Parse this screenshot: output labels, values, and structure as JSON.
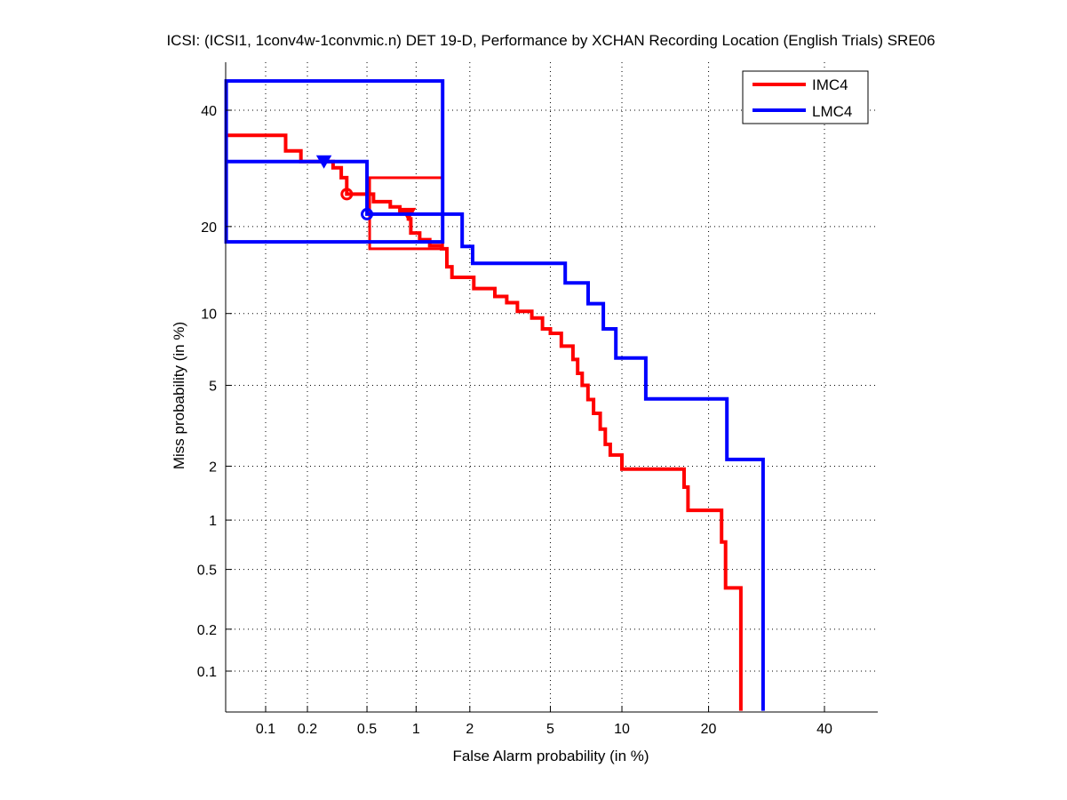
{
  "chart_data": {
    "type": "line",
    "subtype": "DET curve (normal deviate / probit scale)",
    "title": "ICSI: (ICSI1, 1conv4w-1convmic.n) DET 19-D,  Performance by XCHAN Recording Location (English Trials) SRE06",
    "xlabel": "False Alarm probability (in %)",
    "ylabel": "Miss probability (in %)",
    "xscale": "probit",
    "yscale": "probit",
    "xlim": [
      0.05,
      50
    ],
    "ylim": [
      0.05,
      50
    ],
    "x_ticks": [
      "0.1",
      "0.2",
      "0.5",
      "1",
      "2",
      "5",
      "10",
      "20",
      "40"
    ],
    "y_ticks": [
      "0.1",
      "0.2",
      "0.5",
      "1",
      "2",
      "5",
      "10",
      "20",
      "40"
    ],
    "grid": true,
    "legend": {
      "position": "top-right",
      "entries": [
        "IMC4",
        "LMC4"
      ]
    },
    "series": [
      {
        "name": "IMC4",
        "color": "#ff0000",
        "points": [
          [
            0.05,
            35.2
          ],
          [
            0.14,
            35.2
          ],
          [
            0.14,
            32.3
          ],
          [
            0.18,
            32.3
          ],
          [
            0.18,
            30.4
          ],
          [
            0.3,
            30.4
          ],
          [
            0.3,
            29.3
          ],
          [
            0.34,
            29.3
          ],
          [
            0.34,
            27.6
          ],
          [
            0.37,
            27.6
          ],
          [
            0.37,
            24.9
          ],
          [
            0.55,
            24.9
          ],
          [
            0.55,
            23.7
          ],
          [
            0.7,
            23.7
          ],
          [
            0.7,
            22.9
          ],
          [
            0.8,
            22.9
          ],
          [
            0.8,
            22.2
          ],
          [
            0.9,
            22.2
          ],
          [
            0.9,
            21.1
          ],
          [
            0.93,
            21.1
          ],
          [
            0.93,
            19.1
          ],
          [
            1.05,
            19.1
          ],
          [
            1.05,
            18.2
          ],
          [
            1.2,
            18.2
          ],
          [
            1.2,
            17.4
          ],
          [
            1.4,
            17.4
          ],
          [
            1.4,
            17.0
          ],
          [
            1.5,
            17.0
          ],
          [
            1.5,
            14.8
          ],
          [
            1.6,
            14.8
          ],
          [
            1.6,
            13.6
          ],
          [
            2.1,
            13.6
          ],
          [
            2.1,
            12.4
          ],
          [
            2.7,
            12.4
          ],
          [
            2.7,
            11.6
          ],
          [
            3.1,
            11.6
          ],
          [
            3.1,
            11.0
          ],
          [
            3.5,
            11.0
          ],
          [
            3.5,
            10.2
          ],
          [
            4.1,
            10.2
          ],
          [
            4.1,
            9.6
          ],
          [
            4.6,
            9.6
          ],
          [
            4.6,
            8.7
          ],
          [
            5.0,
            8.7
          ],
          [
            5.0,
            8.35
          ],
          [
            5.6,
            8.35
          ],
          [
            5.6,
            7.4
          ],
          [
            6.3,
            7.4
          ],
          [
            6.3,
            6.5
          ],
          [
            6.6,
            6.5
          ],
          [
            6.6,
            5.66
          ],
          [
            6.9,
            5.66
          ],
          [
            6.9,
            5.0
          ],
          [
            7.3,
            5.0
          ],
          [
            7.3,
            4.3
          ],
          [
            7.7,
            4.3
          ],
          [
            7.7,
            3.7
          ],
          [
            8.2,
            3.7
          ],
          [
            8.2,
            3.1
          ],
          [
            8.6,
            3.1
          ],
          [
            8.6,
            2.6
          ],
          [
            9.0,
            2.6
          ],
          [
            9.0,
            2.29
          ],
          [
            10.0,
            2.29
          ],
          [
            10.0,
            1.93
          ],
          [
            16.7,
            1.93
          ],
          [
            16.7,
            1.54
          ],
          [
            17.2,
            1.54
          ],
          [
            17.2,
            1.14
          ],
          [
            21.9,
            1.14
          ],
          [
            21.9,
            0.74
          ],
          [
            22.5,
            0.74
          ],
          [
            22.5,
            0.38
          ],
          [
            24.9,
            0.38
          ],
          [
            24.9,
            0.05
          ]
        ],
        "box": {
          "x": [
            0.52,
            1.42
          ],
          "y": [
            17.0,
            27.6
          ]
        },
        "markers": [
          {
            "shape": "circle",
            "x": 0.37,
            "y": 24.9
          },
          {
            "shape": "triangle-down",
            "x": 0.9,
            "y": 21.8
          }
        ]
      },
      {
        "name": "LMC4",
        "color": "#0000ff",
        "points": [
          [
            0.05,
            30.4
          ],
          [
            0.5,
            30.4
          ],
          [
            0.5,
            21.8
          ],
          [
            1.82,
            21.8
          ],
          [
            1.82,
            17.3
          ],
          [
            2.07,
            17.3
          ],
          [
            2.07,
            15.2
          ],
          [
            5.83,
            15.2
          ],
          [
            5.83,
            13.0
          ],
          [
            7.31,
            13.0
          ],
          [
            7.31,
            10.9
          ],
          [
            8.44,
            10.9
          ],
          [
            8.44,
            8.7
          ],
          [
            9.47,
            8.7
          ],
          [
            9.47,
            6.6
          ],
          [
            12.3,
            6.6
          ],
          [
            12.3,
            4.33
          ],
          [
            22.7,
            4.33
          ],
          [
            22.7,
            2.17
          ],
          [
            28.6,
            2.17
          ],
          [
            28.6,
            0.05
          ]
        ],
        "box": {
          "x": [
            0.05,
            1.42
          ],
          "y": [
            17.9,
            45.8
          ]
        },
        "markers": [
          {
            "shape": "circle",
            "x": 0.5,
            "y": 21.8
          },
          {
            "shape": "triangle-down",
            "x": 0.26,
            "y": 30.4
          }
        ]
      }
    ]
  }
}
